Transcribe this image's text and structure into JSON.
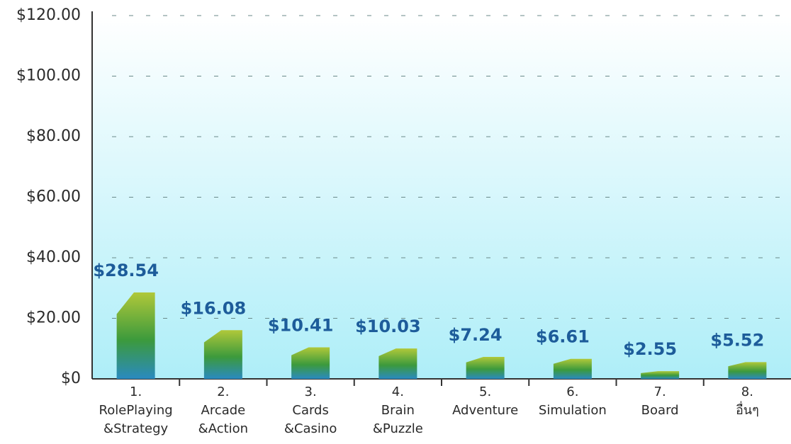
{
  "chart_data": {
    "type": "bar",
    "categories": [
      "1.\nRolePlaying\n&Strategy",
      "2.\nArcade\n&Action",
      "3.\nCards\n&Casino",
      "4.\nBrain\n&Puzzle",
      "5.\nAdventure",
      "6.\nSimulation",
      "7.\nBoard",
      "8.\nอื่นๆ"
    ],
    "values": [
      28.54,
      16.08,
      10.41,
      10.03,
      7.24,
      6.61,
      2.55,
      5.52
    ],
    "value_labels": [
      "$28.54",
      "$16.08",
      "$10.41",
      "$10.03",
      "$7.24",
      "$6.61",
      "$2.55",
      "$5.52"
    ],
    "ylim": [
      0,
      120
    ],
    "yticks": [
      {
        "value": 0,
        "label": "$0"
      },
      {
        "value": 20,
        "label": "$20.00"
      },
      {
        "value": 40,
        "label": "$40.00"
      },
      {
        "value": 60,
        "label": "$60.00"
      },
      {
        "value": 80,
        "label": "$80.00"
      },
      {
        "value": 100,
        "label": "$100.00"
      },
      {
        "value": 120,
        "label": "$120.00"
      }
    ],
    "grid": true
  }
}
